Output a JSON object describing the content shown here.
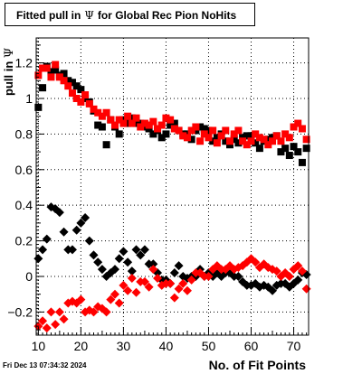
{
  "title": {
    "prefix": "Fitted pull in",
    "symbol": "Ψ",
    "suffix": "for Global Rec Pion NoHits"
  },
  "footer": {
    "timestamp": "Fri Dec 13 07:34:32 2024"
  },
  "chart_data": {
    "type": "scatter",
    "xlabel": "No. of Fit Points",
    "ylabel_text": "pull in",
    "ylabel_symbol": "Ψ",
    "xlim": [
      9.5,
      73.5
    ],
    "ylim": [
      -0.33,
      1.34
    ],
    "xticks": [
      10,
      20,
      30,
      40,
      50,
      60,
      70
    ],
    "yticks": [
      -0.2,
      0,
      0.2,
      0.4,
      0.6,
      0.8,
      1,
      1.2
    ],
    "ytick_labels": [
      "−0.2",
      "0",
      "0.2",
      "0.4",
      "0.6",
      "0.8",
      "1",
      "1.2"
    ],
    "grid": true,
    "legend": "none",
    "series": [
      {
        "color": "#000000",
        "marker": "square",
        "x": [
          10,
          11,
          12,
          13,
          14,
          15,
          16,
          17,
          18,
          19,
          20,
          21,
          22,
          23,
          24,
          25,
          26,
          27,
          28,
          29,
          30,
          31,
          32,
          33,
          34,
          35,
          36,
          37,
          38,
          39,
          40,
          41,
          42,
          43,
          44,
          45,
          46,
          47,
          48,
          49,
          50,
          51,
          52,
          53,
          54,
          55,
          56,
          57,
          58,
          59,
          60,
          61,
          62,
          63,
          64,
          65,
          66,
          67,
          68,
          69,
          70,
          71,
          72,
          73
        ],
        "y": [
          0.95,
          1.06,
          1.18,
          1.15,
          1.16,
          1.13,
          1.14,
          1.1,
          1.09,
          1.07,
          1.05,
          1.0,
          0.98,
          0.93,
          0.85,
          0.84,
          0.74,
          0.88,
          0.84,
          0.8,
          0.88,
          0.86,
          0.89,
          0.86,
          0.86,
          0.84,
          0.83,
          0.8,
          0.82,
          0.78,
          0.8,
          0.85,
          0.86,
          0.82,
          0.8,
          0.8,
          0.77,
          0.82,
          0.84,
          0.83,
          0.82,
          0.76,
          0.78,
          0.8,
          0.76,
          0.74,
          0.77,
          0.75,
          0.78,
          0.79,
          0.79,
          0.75,
          0.72,
          0.76,
          0.77,
          0.78,
          0.79,
          0.7,
          0.72,
          0.68,
          0.73,
          0.7,
          0.64,
          0.72
        ]
      },
      {
        "color": "#ff0000",
        "marker": "square",
        "x": [
          10,
          11,
          12,
          13,
          14,
          15,
          16,
          17,
          18,
          19,
          20,
          21,
          22,
          23,
          24,
          25,
          26,
          27,
          28,
          29,
          30,
          31,
          32,
          33,
          34,
          35,
          36,
          37,
          38,
          39,
          40,
          41,
          42,
          43,
          44,
          45,
          46,
          47,
          48,
          49,
          50,
          51,
          52,
          53,
          54,
          55,
          56,
          57,
          58,
          59,
          60,
          61,
          62,
          63,
          64,
          65,
          66,
          67,
          68,
          69,
          70,
          71,
          72,
          73
        ],
        "y": [
          1.13,
          1.17,
          1.17,
          1.12,
          1.19,
          1.12,
          1.1,
          1.07,
          1.03,
          1.0,
          0.98,
          1.02,
          0.97,
          0.94,
          0.92,
          0.9,
          0.92,
          0.88,
          0.85,
          0.88,
          0.86,
          0.9,
          0.86,
          0.89,
          0.84,
          0.86,
          0.85,
          0.87,
          0.83,
          0.85,
          0.89,
          0.88,
          0.83,
          0.82,
          0.79,
          0.78,
          0.82,
          0.84,
          0.76,
          0.8,
          0.78,
          0.82,
          0.75,
          0.79,
          0.82,
          0.76,
          0.8,
          0.82,
          0.76,
          0.74,
          0.76,
          0.8,
          0.78,
          0.77,
          0.74,
          0.76,
          0.79,
          0.76,
          0.8,
          0.78,
          0.84,
          0.86,
          0.83,
          0.77
        ]
      },
      {
        "color": "#000000",
        "marker": "diamond",
        "x": [
          10,
          11,
          12,
          13,
          14,
          15,
          16,
          17,
          18,
          19,
          20,
          21,
          22,
          23,
          24,
          25,
          26,
          27,
          28,
          29,
          30,
          31,
          32,
          33,
          34,
          35,
          36,
          37,
          38,
          39,
          40,
          41,
          42,
          43,
          44,
          45,
          46,
          47,
          48,
          49,
          50,
          51,
          52,
          53,
          54,
          55,
          56,
          57,
          58,
          59,
          60,
          61,
          62,
          63,
          64,
          65,
          66,
          67,
          68,
          69,
          70,
          71,
          72,
          73
        ],
        "y": [
          0.1,
          0.15,
          0.21,
          0.39,
          0.38,
          0.36,
          0.25,
          0.15,
          0.15,
          0.26,
          0.3,
          0.33,
          0.2,
          0.12,
          0.08,
          0.04,
          0.0,
          0.02,
          0.04,
          0.1,
          0.14,
          0.08,
          0.03,
          0.15,
          0.12,
          0.15,
          0.07,
          0.07,
          0.02,
          -0.02,
          -0.02,
          -0.04,
          0.02,
          0.06,
          0.0,
          -0.01,
          0.0,
          0.0,
          0.04,
          0.0,
          0.02,
          0.0,
          0.02,
          0.0,
          0.02,
          0.02,
          0.0,
          0.0,
          -0.03,
          -0.05,
          -0.05,
          -0.04,
          -0.06,
          -0.05,
          -0.06,
          -0.08,
          -0.05,
          -0.04,
          -0.04,
          -0.06,
          -0.04,
          -0.02,
          0.02,
          0.01
        ]
      },
      {
        "color": "#ff0000",
        "marker": "diamond",
        "x": [
          10,
          11,
          12,
          13,
          14,
          15,
          16,
          17,
          18,
          19,
          20,
          21,
          22,
          23,
          24,
          25,
          26,
          27,
          28,
          29,
          30,
          31,
          32,
          33,
          34,
          35,
          36,
          37,
          38,
          39,
          40,
          41,
          42,
          43,
          44,
          45,
          46,
          47,
          48,
          49,
          50,
          51,
          52,
          53,
          54,
          55,
          56,
          57,
          58,
          59,
          60,
          61,
          62,
          63,
          64,
          65,
          66,
          67,
          68,
          69,
          70,
          71,
          72,
          73
        ],
        "y": [
          -0.28,
          -0.25,
          -0.29,
          -0.2,
          -0.27,
          -0.2,
          -0.24,
          -0.15,
          -0.14,
          -0.15,
          -0.13,
          -0.2,
          -0.19,
          -0.2,
          -0.17,
          -0.18,
          -0.2,
          -0.13,
          -0.1,
          -0.15,
          -0.05,
          -0.08,
          -0.01,
          -0.09,
          -0.03,
          -0.03,
          -0.06,
          0.04,
          -0.01,
          -0.05,
          -0.04,
          -0.04,
          -0.12,
          -0.07,
          -0.04,
          -0.08,
          -0.02,
          0.02,
          0.02,
          0.0,
          0.0,
          0.04,
          0.06,
          0.04,
          0.04,
          0.06,
          0.04,
          0.05,
          0.06,
          0.08,
          0.1,
          0.08,
          0.05,
          0.07,
          0.05,
          0.04,
          0.03,
          0.0,
          0.02,
          0.0,
          0.04,
          0.06,
          0.03,
          -0.07
        ]
      }
    ]
  }
}
